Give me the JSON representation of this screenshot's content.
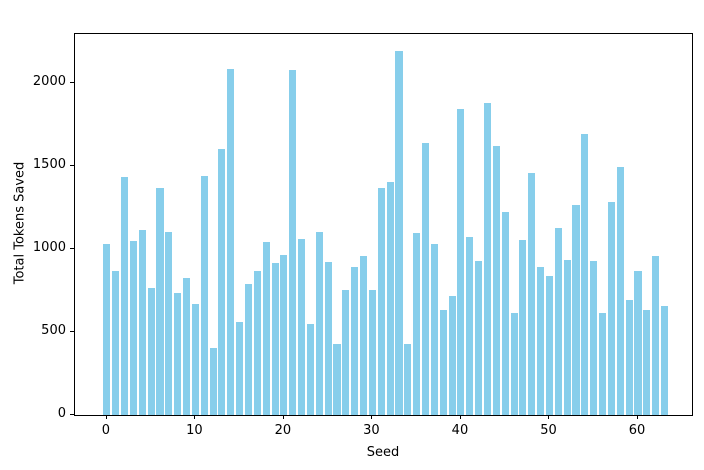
{
  "figure": {
    "background": "#ffffff",
    "text_color": "#000000",
    "spine_color": "#000000"
  },
  "chart_data": {
    "type": "bar",
    "title": "",
    "xlabel": "Seed",
    "ylabel": "Total Tokens Saved",
    "bar_color": "#87CEEB",
    "bar_width_units": 0.8,
    "grid": false,
    "legend": null,
    "xlim": [
      -3.6,
      66.1
    ],
    "ylim": [
      0,
      2295
    ],
    "xticks": [
      0,
      10,
      20,
      30,
      40,
      50,
      60
    ],
    "yticks": [
      0,
      500,
      1000,
      1500,
      2000
    ],
    "x": [
      0,
      1,
      2,
      3,
      4,
      5,
      6,
      7,
      8,
      9,
      10,
      11,
      12,
      13,
      14,
      15,
      16,
      17,
      18,
      19,
      20,
      21,
      22,
      23,
      24,
      25,
      26,
      27,
      28,
      29,
      30,
      31,
      32,
      33,
      34,
      35,
      36,
      37,
      38,
      39,
      40,
      41,
      42,
      43,
      44,
      45,
      46,
      47,
      48,
      49,
      50,
      51,
      52,
      53,
      54,
      55,
      56,
      57,
      58,
      59,
      60,
      61,
      62,
      63
    ],
    "values": [
      1030,
      870,
      1435,
      1050,
      1115,
      765,
      1370,
      1100,
      735,
      825,
      670,
      1440,
      405,
      1600,
      2085,
      560,
      790,
      865,
      1040,
      915,
      965,
      2080,
      1060,
      550,
      1100,
      920,
      425,
      755,
      890,
      955,
      755,
      1365,
      1405,
      2190,
      430,
      1095,
      1640,
      1030,
      630,
      715,
      1845,
      1070,
      930,
      1880,
      1620,
      1220,
      615,
      1055,
      1455,
      890,
      835,
      1125,
      935,
      1265,
      1690,
      930,
      615,
      1285,
      1495,
      695,
      865,
      630,
      960,
      655
    ]
  }
}
